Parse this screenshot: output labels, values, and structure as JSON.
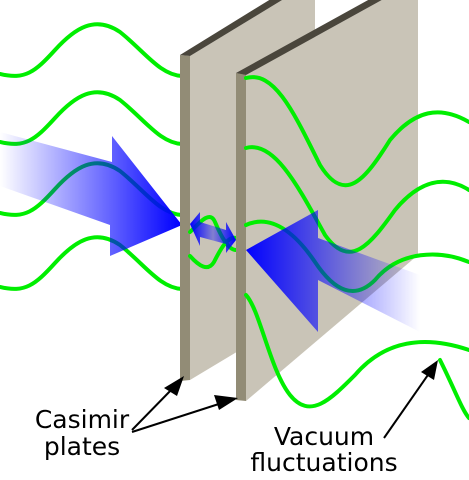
{
  "labels": {
    "plates_line1": "Casimir",
    "plates_line2": "plates",
    "vacuum_line1": "Vacuum",
    "vacuum_line2": "fluctuations"
  },
  "colors": {
    "wave": "#00ee00",
    "arrow": "#0000ff",
    "plate_face": "#c9c4b7",
    "plate_edge": "#928c76",
    "plate_top": "#4a463c",
    "leader": "#000000"
  }
}
